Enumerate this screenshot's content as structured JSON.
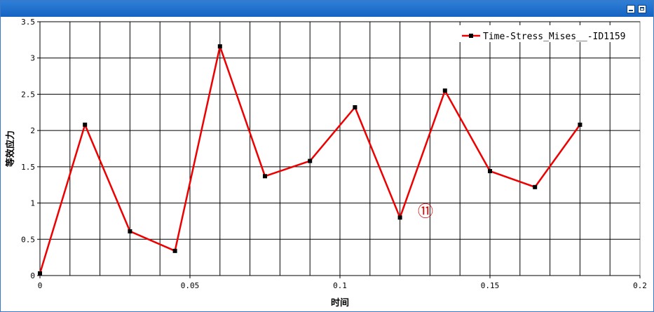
{
  "window": {
    "title": "",
    "accent": "#1f6fd0"
  },
  "chart_data": {
    "type": "line",
    "xlabel": "时间",
    "ylabel": "等效应力",
    "xlim": [
      0,
      0.2
    ],
    "ylim": [
      0,
      3.5
    ],
    "xticks": [
      0,
      0.05,
      0.1,
      0.15,
      0.2
    ],
    "xtick_labels": [
      "0",
      "0.05",
      "0.1",
      "0.15",
      "0.2"
    ],
    "yticks": [
      0,
      0.5,
      1,
      1.5,
      2,
      2.5,
      3,
      3.5
    ],
    "ytick_labels": [
      "0",
      "0.5",
      "1",
      "1.5",
      "2",
      "2.5",
      "3",
      "3.5"
    ],
    "x_grid_step": 0.01,
    "grid": true,
    "legend_position": "top-right",
    "series": [
      {
        "name": "Time-Stress_Mises__-ID1159",
        "color": "#ee0000",
        "marker_color": "#000000",
        "x": [
          0,
          0.015,
          0.03,
          0.045,
          0.06,
          0.075,
          0.09,
          0.105,
          0.12,
          0.135,
          0.15,
          0.165,
          0.18
        ],
        "y": [
          0.03,
          2.08,
          0.61,
          0.34,
          3.16,
          1.37,
          1.58,
          2.32,
          0.8,
          2.55,
          1.44,
          1.22,
          2.08
        ]
      }
    ],
    "annotations": [
      {
        "text": "⑪",
        "x": 0.1285,
        "y": 0.89
      }
    ]
  }
}
